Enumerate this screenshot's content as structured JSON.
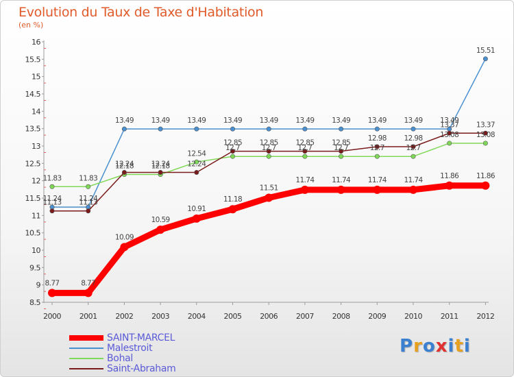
{
  "chart_data": {
    "type": "line",
    "title": "Evolution du Taux de Taxe d'Habitation",
    "ylabel": "(en %)",
    "xlabel": "",
    "x": [
      "2000",
      "2001",
      "2002",
      "2003",
      "2004",
      "2005",
      "2006",
      "2007",
      "2008",
      "2009",
      "2010",
      "2011",
      "2012"
    ],
    "ylim": [
      8.5,
      16
    ],
    "yticks": [
      8.5,
      9,
      9.5,
      10,
      10.5,
      11,
      11.5,
      12,
      12.5,
      13,
      13.5,
      14,
      14.5,
      15,
      15.5,
      16
    ],
    "grid": false,
    "legend_position": "bottom-left",
    "series": [
      {
        "name": "SAINT-MARCEL",
        "color": "#ff0000",
        "width": "thick",
        "values": [
          8.77,
          8.77,
          10.09,
          10.59,
          10.91,
          11.18,
          11.51,
          11.74,
          11.74,
          11.74,
          11.74,
          11.86,
          11.86
        ],
        "labels": [
          "8.77",
          "8.77",
          "10.09",
          "10.59",
          "10.91",
          "11.18",
          "11.51",
          "11.74",
          "11.74",
          "11.74",
          "11.74",
          "11.86",
          "11.86"
        ]
      },
      {
        "name": "Malestroit",
        "color": "#4a90d0",
        "width": "thin",
        "values": [
          11.24,
          11.24,
          13.49,
          13.49,
          13.49,
          13.49,
          13.49,
          13.49,
          13.49,
          13.49,
          13.49,
          13.49,
          15.51
        ],
        "labels": [
          "11.24",
          "11.24",
          "13.49",
          "13.49",
          "13.49",
          "13.49",
          "13.49",
          "13.49",
          "13.49",
          "13.49",
          "13.49",
          "13.49",
          "15.51"
        ]
      },
      {
        "name": "Bohal",
        "color": "#80d858",
        "width": "thin",
        "values": [
          11.83,
          11.83,
          12.18,
          12.18,
          12.54,
          12.7,
          12.7,
          12.7,
          12.7,
          12.7,
          12.7,
          13.08,
          13.08
        ],
        "labels": [
          "11.83",
          "11.83",
          "12.18",
          "12.18",
          "12.54",
          "12.7",
          "12.7",
          "12.7",
          "12.7",
          "12.7",
          "12.7",
          "13.08",
          "13.08"
        ]
      },
      {
        "name": "Saint-Abraham",
        "color": "#7a1a1a",
        "width": "thin",
        "values": [
          11.13,
          11.13,
          12.24,
          12.24,
          12.24,
          12.85,
          12.85,
          12.85,
          12.85,
          12.98,
          12.98,
          13.37,
          13.37
        ],
        "labels": [
          "11.13",
          "11.13",
          "12.24",
          "12.24",
          "12.24",
          "12.85",
          "12.85",
          "12.85",
          "12.85",
          "12.98",
          "12.98",
          "13.37",
          "13.37"
        ]
      }
    ]
  },
  "logo": {
    "text": "Proxiti",
    "letters": [
      "P",
      "r",
      "o",
      "x",
      "i",
      "t",
      "i"
    ],
    "colors": [
      "#3a7fd0",
      "#e8a020",
      "#3a7fd0",
      "#e03030",
      "#3a7fd0",
      "#e8a020",
      "#3a7fd0"
    ]
  }
}
